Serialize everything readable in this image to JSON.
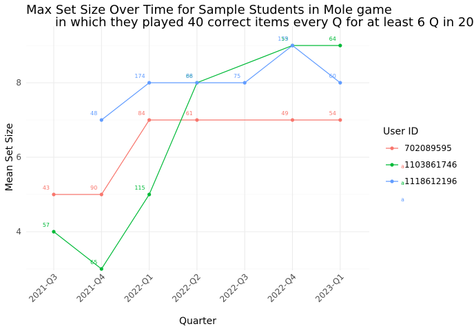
{
  "chart_data": {
    "type": "line",
    "title": "Max Set Size Over Time for Sample Students in Mole game",
    "subtitle": "in which they played 40 correct items every Q for at least 6 Q in 20",
    "xlabel": "Quarter",
    "ylabel": "Mean Set Size",
    "categories": [
      "2021-Q3",
      "2021-Q4",
      "2022-Q1",
      "2022-Q2",
      "2022-Q3",
      "2022-Q4",
      "2023-Q1"
    ],
    "yticks": [
      4,
      6,
      8
    ],
    "ylim": [
      2.55,
      9.3
    ],
    "grid": true,
    "legend": {
      "title": "User ID",
      "position": "right"
    },
    "series": [
      {
        "name": "702089595",
        "color": "#F8766D",
        "points": [
          {
            "x": "2021-Q3",
            "y": 5,
            "label": "43"
          },
          {
            "x": "2021-Q4",
            "y": 5,
            "label": "90"
          },
          {
            "x": "2022-Q1",
            "y": 7,
            "label": "84"
          },
          {
            "x": "2022-Q2",
            "y": 7,
            "label": "61"
          },
          {
            "x": "2022-Q4",
            "y": 7,
            "label": "49"
          },
          {
            "x": "2023-Q1",
            "y": 7,
            "label": "54"
          }
        ]
      },
      {
        "name": "1103861746",
        "color": "#00BA38",
        "points": [
          {
            "x": "2021-Q3",
            "y": 4,
            "label": "57"
          },
          {
            "x": "2021-Q4",
            "y": 3,
            "label": "65"
          },
          {
            "x": "2022-Q1",
            "y": 5,
            "label": "115"
          },
          {
            "x": "2022-Q2",
            "y": 8,
            "label": "66"
          },
          {
            "x": "2022-Q4",
            "y": 9,
            "label": "53"
          },
          {
            "x": "2023-Q1",
            "y": 9,
            "label": "64"
          }
        ]
      },
      {
        "name": "1118612196",
        "color": "#619CFF",
        "points": [
          {
            "x": "2021-Q4",
            "y": 7,
            "label": "48"
          },
          {
            "x": "2022-Q1",
            "y": 8,
            "label": "174"
          },
          {
            "x": "2022-Q2",
            "y": 8,
            "label": "88"
          },
          {
            "x": "2022-Q3",
            "y": 8,
            "label": "75"
          },
          {
            "x": "2022-Q4",
            "y": 9,
            "label": "179"
          },
          {
            "x": "2023-Q1",
            "y": 8,
            "label": "60"
          }
        ]
      }
    ],
    "legend_key_glyph": "a"
  }
}
